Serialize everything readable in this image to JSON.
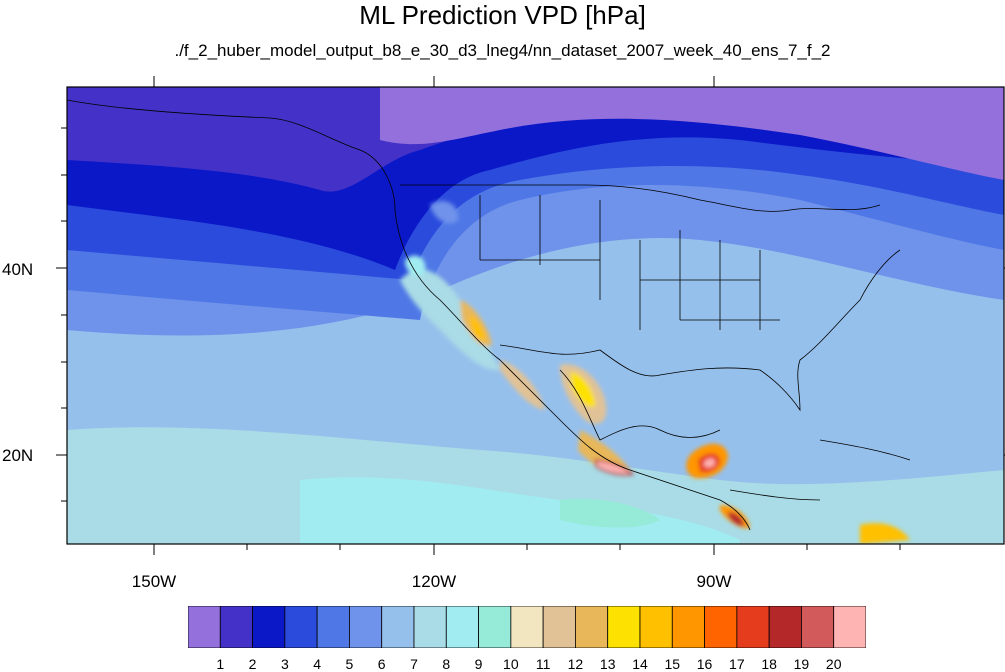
{
  "title": "ML Prediction VPD [hPa]",
  "subtitle": "./f_2_huber_model_output_b8_e_30_d3_lneg4/nn_dataset_2007_week_40_ens_7_f_2",
  "axes": {
    "lon_labels": [
      "150W",
      "120W",
      "90W"
    ],
    "lat_labels": [
      "40N",
      "20N"
    ]
  },
  "colorbar": {
    "labels": [
      "1",
      "2",
      "3",
      "4",
      "5",
      "6",
      "7",
      "8",
      "9",
      "10",
      "11",
      "12",
      "13",
      "14",
      "15",
      "16",
      "17",
      "18",
      "19",
      "20"
    ],
    "colors": [
      "#9370db",
      "#4432c8",
      "#0a18c8",
      "#2a4bdc",
      "#4f78e6",
      "#6f92ea",
      "#96c0ec",
      "#a9dce6",
      "#a0ecf0",
      "#96ead8",
      "#f2e6c0",
      "#e0c296",
      "#e8b75a",
      "#fde100",
      "#ffc000",
      "#ff9600",
      "#ff6400",
      "#e63c1e",
      "#b4282a",
      "#d25a5a",
      "#ffb4b4"
    ]
  },
  "field_legend": "vapor pressure deficit, hPa"
}
